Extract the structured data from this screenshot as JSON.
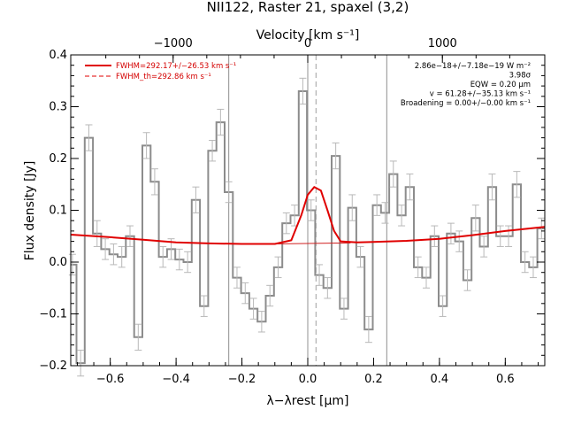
{
  "chart_data": {
    "type": "line",
    "title": "NII122, Raster 21, spaxel (3,2)",
    "xlabel": "λ−λrest [μm]",
    "ylabel": "Flux density [Jy]",
    "top_axis_label": "Velocity [km s⁻¹]",
    "xlim": [
      -0.72,
      0.72
    ],
    "ylim": [
      -0.2,
      0.4
    ],
    "x_ticks": [
      -0.6,
      -0.4,
      -0.2,
      0.0,
      0.2,
      0.4,
      0.6
    ],
    "x_tick_labels": [
      "−0.6",
      "−0.4",
      "−0.2",
      "0.0",
      "0.2",
      "0.4",
      "0.6"
    ],
    "y_ticks": [
      -0.2,
      -0.1,
      0.0,
      0.1,
      0.2,
      0.3,
      0.4
    ],
    "y_tick_labels": [
      "−0.2",
      "−0.1",
      "0.0",
      "0.1",
      "0.2",
      "0.3",
      "0.4"
    ],
    "top_ticks_kms": [
      -1000,
      0,
      1000
    ],
    "top_tick_labels": [
      "−1000",
      "0",
      "1000"
    ],
    "legend": [
      {
        "label": "FWHM=292.17+/−26.53 km s⁻¹",
        "style": "solid",
        "color": "#e00000"
      },
      {
        "label": "FWHM_th=292.86 km s⁻¹",
        "style": "dashed",
        "color": "#e00000"
      }
    ],
    "annotations": [
      "2.86e−18+/−7.18e−19 W m⁻²",
      "3.98σ",
      "EQW = 0.20 μm",
      "v = 61.28+/−35.13 km s⁻¹",
      "Broadening = 0.00+/−0.00 km s⁻¹"
    ],
    "vertical_lines": {
      "solid": [
        -0.24,
        0.0,
        0.24
      ],
      "dashed": [
        0.025
      ]
    },
    "series": [
      {
        "name": "FWHM=292.17+/−26.53 km s⁻¹",
        "type": "step",
        "color": "#808080",
        "x": [
          -0.715,
          -0.69,
          -0.665,
          -0.64,
          -0.615,
          -0.59,
          -0.565,
          -0.54,
          -0.515,
          -0.49,
          -0.465,
          -0.44,
          -0.415,
          -0.39,
          -0.365,
          -0.34,
          -0.315,
          -0.29,
          -0.265,
          -0.24,
          -0.215,
          -0.19,
          -0.165,
          -0.14,
          -0.115,
          -0.09,
          -0.065,
          -0.04,
          -0.015,
          0.01,
          0.035,
          0.06,
          0.085,
          0.11,
          0.135,
          0.16,
          0.185,
          0.21,
          0.235,
          0.26,
          0.285,
          0.31,
          0.335,
          0.36,
          0.385,
          0.41,
          0.435,
          0.46,
          0.485,
          0.51,
          0.535,
          0.56,
          0.585,
          0.61,
          0.635,
          0.66,
          0.685,
          0.71
        ],
        "y": [
          -0.005,
          -0.195,
          0.24,
          0.055,
          0.025,
          0.015,
          0.01,
          0.05,
          -0.145,
          0.225,
          0.155,
          0.01,
          0.025,
          0.005,
          0.0,
          0.12,
          -0.085,
          0.215,
          0.27,
          0.135,
          -0.03,
          -0.06,
          -0.09,
          -0.115,
          -0.065,
          -0.01,
          0.075,
          0.09,
          0.33,
          0.1,
          -0.025,
          -0.05,
          0.205,
          -0.09,
          0.105,
          0.01,
          -0.13,
          0.11,
          0.095,
          0.17,
          0.09,
          0.145,
          -0.01,
          -0.03,
          0.05,
          -0.085,
          0.055,
          0.04,
          -0.035,
          0.085,
          0.03,
          0.145,
          0.05,
          0.05,
          0.15,
          0.0,
          -0.01,
          0.065
        ],
        "errors": [
          0.02,
          0.025,
          0.025,
          0.025,
          0.02,
          0.02,
          0.02,
          0.02,
          0.025,
          0.025,
          0.025,
          0.02,
          0.02,
          0.02,
          0.02,
          0.025,
          0.02,
          0.02,
          0.025,
          0.02,
          0.02,
          0.02,
          0.02,
          0.02,
          0.02,
          0.02,
          0.02,
          0.02,
          0.025,
          0.02,
          0.02,
          0.02,
          0.025,
          0.02,
          0.025,
          0.02,
          0.025,
          0.02,
          0.02,
          0.025,
          0.02,
          0.025,
          0.02,
          0.02,
          0.02,
          0.02,
          0.02,
          0.02,
          0.02,
          0.025,
          0.02,
          0.025,
          0.02,
          0.02,
          0.025,
          0.02,
          0.02,
          0.02
        ]
      },
      {
        "name": "fit",
        "type": "line",
        "color": "#e00000",
        "x": [
          -0.72,
          -0.6,
          -0.5,
          -0.4,
          -0.3,
          -0.2,
          -0.1,
          -0.05,
          -0.02,
          0.0,
          0.02,
          0.04,
          0.06,
          0.08,
          0.1,
          0.15,
          0.2,
          0.3,
          0.4,
          0.5,
          0.6,
          0.72
        ],
        "y": [
          0.053,
          0.048,
          0.043,
          0.038,
          0.036,
          0.035,
          0.035,
          0.042,
          0.09,
          0.13,
          0.145,
          0.138,
          0.1,
          0.06,
          0.04,
          0.038,
          0.039,
          0.041,
          0.045,
          0.052,
          0.06,
          0.068
        ]
      }
    ]
  }
}
